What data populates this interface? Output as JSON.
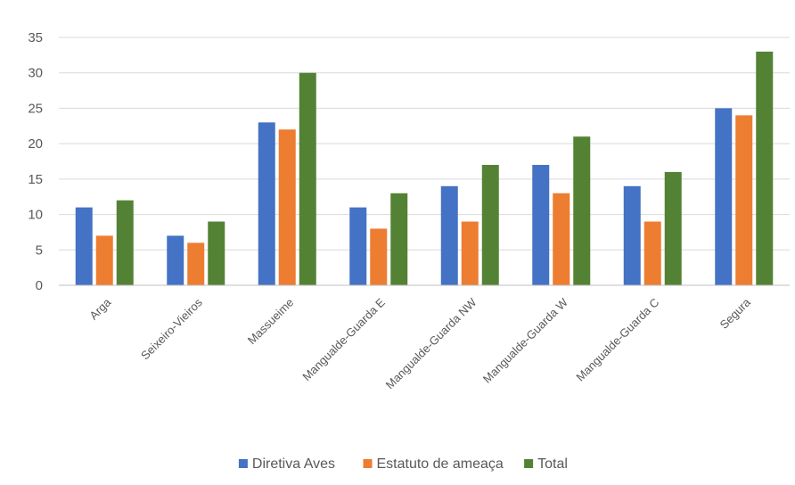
{
  "chart_data": {
    "type": "bar",
    "categories": [
      "Arga",
      "Seixeiro-Vieiros",
      "Massueime",
      "Mangualde-Guarda E",
      "Mangualde-Guarda NW",
      "Mangualde-Guarda W",
      "Mangualde-Guarda C",
      "Segura"
    ],
    "series": [
      {
        "name": "Diretiva Aves",
        "color": "#4472C4",
        "values": [
          11,
          7,
          23,
          11,
          14,
          17,
          14,
          25
        ]
      },
      {
        "name": "Estatuto de ameaça",
        "color": "#ED7D31",
        "values": [
          7,
          6,
          22,
          8,
          9,
          13,
          9,
          24
        ]
      },
      {
        "name": "Total",
        "color": "#548235",
        "values": [
          12,
          9,
          30,
          13,
          17,
          21,
          16,
          33
        ]
      }
    ],
    "yticks": [
      "0",
      "5",
      "10",
      "15",
      "20",
      "25",
      "30",
      "35"
    ],
    "ylim": [
      0,
      35
    ],
    "grid": true,
    "legend_position": "bottom"
  }
}
